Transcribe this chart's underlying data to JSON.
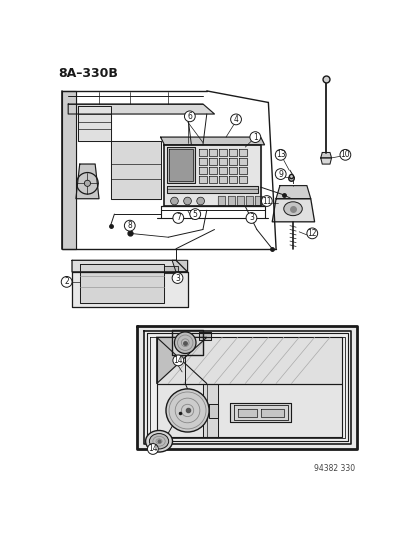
{
  "title": "8A–330B",
  "bg": "#ffffff",
  "lc": "#1a1a1a",
  "fig_w": 4.14,
  "fig_h": 5.33,
  "dpi": 100,
  "watermark": "94382 330"
}
